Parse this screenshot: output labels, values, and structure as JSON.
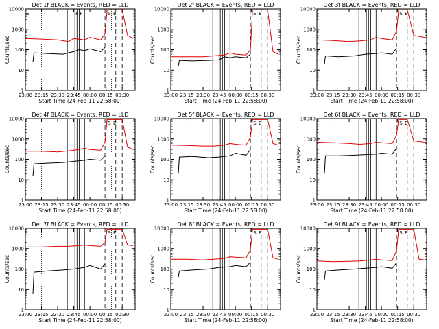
{
  "colors": {
    "events": "#000000",
    "lld": "#dd0000",
    "axis": "#000000"
  },
  "chart_data": [
    {
      "type": "line",
      "title": "Det 1f BLACK = Events, RED = LLD",
      "xlabel": "Start Time (24-Feb-11 22:58:00)",
      "ylabel": "Counts/sec",
      "yscale": "log",
      "ylim": [
        1,
        10000
      ],
      "xlim": [
        "23:00",
        "00:42"
      ],
      "xticks": [
        "23:00",
        "23:15",
        "23:30",
        "23:45",
        "00:00",
        "00:15",
        "00:30"
      ],
      "yticks": [
        "1",
        "10",
        "100",
        "1000",
        "10000"
      ],
      "time_markers": {
        "dotted": [
          "23:15",
          "00:20"
        ],
        "solid": [
          "23:39",
          "23:46",
          "23:48",
          "23:50",
          "23:55"
        ],
        "dashed": [
          "00:14",
          "00:24",
          "00:30"
        ]
      },
      "flags": [
        {
          "t": "23:00",
          "label": "E"
        },
        {
          "t": "23:46",
          "label": "F"
        },
        {
          "t": "23:50",
          "label": "F"
        },
        {
          "t": "00:16",
          "label": "S"
        },
        {
          "t": "00:21",
          "label": "E"
        }
      ],
      "series": [
        {
          "name": "BLACK = Events",
          "color": "black",
          "x": [
            "23:07",
            "23:08",
            "23:20",
            "23:35",
            "23:40",
            "23:45",
            "23:50",
            "23:55",
            "00:00",
            "00:10",
            "00:14"
          ],
          "values": [
            25,
            70,
            65,
            60,
            70,
            80,
            100,
            90,
            110,
            80,
            130
          ]
        },
        {
          "name": "RED = LLD",
          "color": "red",
          "x": [
            "23:00",
            "23:15",
            "23:30",
            "23:40",
            "23:45",
            "23:55",
            "00:00",
            "00:10",
            "00:14",
            "00:16",
            "00:30",
            "00:35",
            "00:40"
          ],
          "values": [
            350,
            330,
            300,
            250,
            350,
            300,
            400,
            300,
            600,
            9000,
            9000,
            500,
            350
          ]
        }
      ]
    },
    {
      "type": "line",
      "title": "Det 2f BLACK = Events, RED = LLD",
      "xlabel": "Start Time (24-Feb-11 22:58:00)",
      "ylabel": "Counts/sec",
      "yscale": "log",
      "ylim": [
        1,
        10000
      ],
      "xlim": [
        "23:00",
        "00:42"
      ],
      "xticks": [
        "23:00",
        "23:15",
        "23:30",
        "23:45",
        "00:00",
        "00:15",
        "00:30"
      ],
      "yticks": [
        "1",
        "10",
        "100",
        "1000",
        "10000"
      ],
      "time_markers": {
        "dotted": [
          "23:15",
          "00:20"
        ],
        "solid": [
          "23:39",
          "23:46",
          "23:48",
          "23:50",
          "23:55"
        ],
        "dashed": [
          "00:14",
          "00:24",
          "00:30"
        ]
      },
      "flags": [
        {
          "t": "00:16",
          "label": "S"
        },
        {
          "t": "00:21",
          "label": "E"
        }
      ],
      "series": [
        {
          "name": "BLACK = Events",
          "color": "black",
          "x": [
            "23:07",
            "23:08",
            "23:20",
            "23:35",
            "23:45",
            "23:50",
            "23:55",
            "00:00",
            "00:10",
            "00:14"
          ],
          "values": [
            15,
            30,
            28,
            30,
            32,
            45,
            40,
            45,
            40,
            60
          ]
        },
        {
          "name": "RED = LLD",
          "color": "red",
          "x": [
            "23:00",
            "23:15",
            "23:30",
            "23:40",
            "23:50",
            "23:55",
            "00:00",
            "00:10",
            "00:14",
            "00:16",
            "00:30",
            "00:35",
            "00:40"
          ],
          "values": [
            45,
            45,
            45,
            50,
            55,
            70,
            60,
            55,
            100,
            9000,
            9000,
            80,
            60
          ]
        }
      ]
    },
    {
      "type": "line",
      "title": "Det 3f BLACK = Events, RED = LLD",
      "xlabel": "Start Time (24-Feb-11 22:58:00)",
      "ylabel": "Counts/sec",
      "yscale": "log",
      "ylim": [
        1,
        10000
      ],
      "xlim": [
        "23:00",
        "00:42"
      ],
      "xticks": [
        "23:00",
        "23:15",
        "23:30",
        "23:45",
        "00:00",
        "00:15",
        "00:30"
      ],
      "yticks": [
        "1",
        "10",
        "100",
        "1000",
        "10000"
      ],
      "time_markers": {
        "dotted": [
          "23:15",
          "00:20"
        ],
        "solid": [
          "23:39",
          "23:46",
          "23:48",
          "23:50",
          "23:55"
        ],
        "dashed": [
          "00:14",
          "00:24",
          "00:30"
        ]
      },
      "flags": [
        {
          "t": "00:16",
          "label": "S"
        },
        {
          "t": "00:21",
          "label": "E"
        }
      ],
      "series": [
        {
          "name": "BLACK = Events",
          "color": "black",
          "x": [
            "23:07",
            "23:08",
            "23:20",
            "23:35",
            "23:45",
            "23:55",
            "00:00",
            "00:10",
            "00:14"
          ],
          "values": [
            20,
            50,
            45,
            50,
            60,
            65,
            70,
            60,
            120
          ]
        },
        {
          "name": "RED = LLD",
          "color": "red",
          "x": [
            "23:00",
            "23:15",
            "23:30",
            "23:40",
            "23:50",
            "23:55",
            "00:00",
            "00:10",
            "00:14",
            "00:16",
            "00:24",
            "00:30",
            "00:40"
          ],
          "values": [
            300,
            280,
            250,
            270,
            300,
            400,
            350,
            300,
            800,
            9000,
            9000,
            500,
            400
          ]
        }
      ]
    },
    {
      "type": "line",
      "title": "Det 4f BLACK = Events, RED = LLD",
      "xlabel": "Start Time (24-Feb-11 22:58:00)",
      "ylabel": "Counts/sec",
      "yscale": "log",
      "ylim": [
        1,
        10000
      ],
      "xlim": [
        "23:00",
        "00:42"
      ],
      "xticks": [
        "23:00",
        "23:15",
        "23:30",
        "23:45",
        "00:00",
        "00:15",
        "00:30"
      ],
      "yticks": [
        "1",
        "10",
        "100",
        "1000",
        "10000"
      ],
      "time_markers": {
        "dotted": [
          "23:15",
          "00:20"
        ],
        "solid": [
          "23:39",
          "23:46",
          "23:48",
          "23:50",
          "23:55"
        ],
        "dashed": [
          "00:14",
          "00:24",
          "00:30"
        ]
      },
      "flags": [
        {
          "t": "00:16",
          "label": "S"
        },
        {
          "t": "00:21",
          "label": "E"
        }
      ],
      "series": [
        {
          "name": "BLACK = Events",
          "color": "black",
          "x": [
            "23:07",
            "23:08",
            "23:20",
            "23:35",
            "23:45",
            "23:55",
            "00:00",
            "00:10",
            "00:14"
          ],
          "values": [
            15,
            60,
            65,
            70,
            80,
            90,
            100,
            90,
            150
          ]
        },
        {
          "name": "RED = LLD",
          "color": "red",
          "x": [
            "23:00",
            "23:15",
            "23:30",
            "23:40",
            "23:50",
            "23:55",
            "00:00",
            "00:10",
            "00:14",
            "00:16",
            "00:30",
            "00:35",
            "00:40"
          ],
          "values": [
            250,
            250,
            230,
            260,
            300,
            350,
            300,
            280,
            700,
            9000,
            9000,
            400,
            300
          ]
        }
      ]
    },
    {
      "type": "line",
      "title": "Det 5f BLACK = Events, RED = LLD",
      "xlabel": "Start Time (24-Feb-11 22:58:00)",
      "ylabel": "Counts/sec",
      "yscale": "log",
      "ylim": [
        1,
        10000
      ],
      "xlim": [
        "23:00",
        "00:42"
      ],
      "xticks": [
        "23:00",
        "23:15",
        "23:30",
        "23:45",
        "00:00",
        "00:15",
        "00:30"
      ],
      "yticks": [
        "1",
        "10",
        "100",
        "1000",
        "10000"
      ],
      "time_markers": {
        "dotted": [
          "23:15",
          "00:20"
        ],
        "solid": [
          "23:39",
          "23:46",
          "23:48",
          "23:50",
          "23:55"
        ],
        "dashed": [
          "00:14",
          "00:24",
          "00:30"
        ]
      },
      "flags": [
        {
          "t": "00:16",
          "label": "S"
        },
        {
          "t": "00:21",
          "label": "E"
        }
      ],
      "series": [
        {
          "name": "BLACK = Events",
          "color": "black",
          "x": [
            "23:07",
            "23:08",
            "23:20",
            "23:35",
            "23:45",
            "23:55",
            "00:00",
            "00:10",
            "00:14"
          ],
          "values": [
            20,
            130,
            140,
            120,
            130,
            150,
            200,
            160,
            300
          ]
        },
        {
          "name": "RED = LLD",
          "color": "red",
          "x": [
            "23:00",
            "23:15",
            "23:30",
            "23:40",
            "23:50",
            "23:55",
            "00:00",
            "00:10",
            "00:14",
            "00:16",
            "00:30",
            "00:35",
            "00:40"
          ],
          "values": [
            500,
            480,
            450,
            450,
            500,
            600,
            550,
            500,
            1200,
            9000,
            9000,
            600,
            500
          ]
        }
      ]
    },
    {
      "type": "line",
      "title": "Det 6f BLACK = Events, RED = LLD",
      "xlabel": "Start Time (24-Feb-11 22:58:00)",
      "ylabel": "Counts/sec",
      "yscale": "log",
      "ylim": [
        1,
        10000
      ],
      "xlim": [
        "23:00",
        "00:42"
      ],
      "xticks": [
        "23:00",
        "23:15",
        "23:30",
        "23:45",
        "00:00",
        "00:15",
        "00:30"
      ],
      "yticks": [
        "1",
        "10",
        "100",
        "1000",
        "10000"
      ],
      "time_markers": {
        "dotted": [
          "23:15",
          "00:20"
        ],
        "solid": [
          "23:39",
          "23:46",
          "23:48",
          "23:50",
          "23:55"
        ],
        "dashed": [
          "00:14",
          "00:24",
          "00:30"
        ]
      },
      "flags": [
        {
          "t": "00:16",
          "label": "S"
        },
        {
          "t": "00:21",
          "label": "E"
        }
      ],
      "series": [
        {
          "name": "BLACK = Events",
          "color": "black",
          "x": [
            "23:07",
            "23:08",
            "23:20",
            "23:35",
            "23:45",
            "23:55",
            "00:00",
            "00:10",
            "00:14"
          ],
          "values": [
            20,
            150,
            150,
            160,
            170,
            180,
            200,
            180,
            350
          ]
        },
        {
          "name": "RED = LLD",
          "color": "red",
          "x": [
            "23:00",
            "23:15",
            "23:30",
            "23:40",
            "23:50",
            "23:55",
            "00:00",
            "00:10",
            "00:14",
            "00:16",
            "00:24",
            "00:30",
            "00:40"
          ],
          "values": [
            700,
            650,
            600,
            550,
            600,
            700,
            650,
            600,
            1500,
            9000,
            9000,
            800,
            700
          ]
        }
      ]
    },
    {
      "type": "line",
      "title": "Det 7f BLACK = Events, RED = LLD",
      "xlabel": "Start Time (24-Feb-11 22:58:00)",
      "ylabel": "Counts/sec",
      "yscale": "log",
      "ylim": [
        1,
        10000
      ],
      "xlim": [
        "23:00",
        "00:42"
      ],
      "xticks": [
        "23:00",
        "23:15",
        "23:30",
        "23:45",
        "00:00",
        "00:15",
        "00:30"
      ],
      "yticks": [
        "1",
        "10",
        "100",
        "1000",
        "10000"
      ],
      "time_markers": {
        "dotted": [
          "23:15",
          "00:20"
        ],
        "solid": [
          "23:39",
          "23:46",
          "23:48",
          "23:50",
          "23:55"
        ],
        "dashed": [
          "00:14",
          "00:24",
          "00:30"
        ]
      },
      "flags": [
        {
          "t": "00:16",
          "label": "S"
        },
        {
          "t": "00:21",
          "label": "E"
        }
      ],
      "series": [
        {
          "name": "BLACK = Events",
          "color": "black",
          "x": [
            "23:07",
            "23:08",
            "23:20",
            "23:35",
            "23:45",
            "23:55",
            "00:00",
            "00:10",
            "00:14"
          ],
          "values": [
            6,
            70,
            80,
            90,
            100,
            120,
            150,
            100,
            180
          ]
        },
        {
          "name": "RED = LLD",
          "color": "red",
          "x": [
            "23:00",
            "23:15",
            "23:30",
            "23:40",
            "23:50",
            "23:55",
            "00:00",
            "00:10",
            "00:14",
            "00:16",
            "00:30",
            "00:35",
            "00:40"
          ],
          "values": [
            1200,
            1200,
            1300,
            1300,
            1400,
            1500,
            1400,
            1300,
            2000,
            9000,
            9000,
            1500,
            1400
          ]
        }
      ]
    },
    {
      "type": "line",
      "title": "Det 8f BLACK = Events, RED = LLD",
      "xlabel": "Start Time (24-Feb-11 22:58:00)",
      "ylabel": "Counts/sec",
      "yscale": "log",
      "ylim": [
        1,
        10000
      ],
      "xlim": [
        "23:00",
        "00:42"
      ],
      "xticks": [
        "23:00",
        "23:15",
        "23:30",
        "23:45",
        "00:00",
        "00:15",
        "00:30"
      ],
      "yticks": [
        "1",
        "10",
        "100",
        "1000",
        "10000"
      ],
      "time_markers": {
        "dotted": [
          "23:15",
          "00:20"
        ],
        "solid": [
          "23:39",
          "23:46",
          "23:48",
          "23:50",
          "23:55"
        ],
        "dashed": [
          "00:14",
          "00:24",
          "00:30"
        ]
      },
      "flags": [
        {
          "t": "00:16",
          "label": "S"
        },
        {
          "t": "00:21",
          "label": "E"
        }
      ],
      "series": [
        {
          "name": "BLACK = Events",
          "color": "black",
          "x": [
            "23:07",
            "23:08",
            "23:20",
            "23:35",
            "23:45",
            "23:55",
            "00:00",
            "00:10",
            "00:14"
          ],
          "values": [
            40,
            80,
            90,
            100,
            120,
            130,
            150,
            130,
            220
          ]
        },
        {
          "name": "RED = LLD",
          "color": "red",
          "x": [
            "23:00",
            "23:15",
            "23:30",
            "23:40",
            "23:50",
            "23:55",
            "00:00",
            "00:10",
            "00:14",
            "00:16",
            "00:30",
            "00:35",
            "00:40"
          ],
          "values": [
            300,
            300,
            280,
            300,
            330,
            400,
            380,
            350,
            900,
            9000,
            9000,
            350,
            300
          ]
        }
      ]
    },
    {
      "type": "line",
      "title": "Det 9f BLACK = Events, RED = LLD",
      "xlabel": "Start Time (24-Feb-11 22:58:00)",
      "ylabel": "Counts/sec",
      "yscale": "log",
      "ylim": [
        1,
        10000
      ],
      "xlim": [
        "23:00",
        "00:42"
      ],
      "xticks": [
        "23:00",
        "23:15",
        "23:30",
        "23:45",
        "00:00",
        "00:15",
        "00:30"
      ],
      "yticks": [
        "1",
        "10",
        "100",
        "1000",
        "10000"
      ],
      "time_markers": {
        "dotted": [
          "23:15",
          "00:20"
        ],
        "solid": [
          "23:39",
          "23:46",
          "23:48",
          "23:50",
          "23:55"
        ],
        "dashed": [
          "00:14",
          "00:24",
          "00:30"
        ]
      },
      "flags": [
        {
          "t": "00:16",
          "label": "S"
        },
        {
          "t": "00:21",
          "label": "E"
        }
      ],
      "series": [
        {
          "name": "BLACK = Events",
          "color": "black",
          "x": [
            "23:07",
            "23:08",
            "23:20",
            "23:35",
            "23:45",
            "23:55",
            "00:00",
            "00:10",
            "00:14"
          ],
          "values": [
            30,
            80,
            90,
            100,
            110,
            120,
            130,
            110,
            200
          ]
        },
        {
          "name": "RED = LLD",
          "color": "red",
          "x": [
            "23:00",
            "23:15",
            "23:30",
            "23:40",
            "23:50",
            "23:55",
            "00:00",
            "00:10",
            "00:14",
            "00:16",
            "00:30",
            "00:35",
            "00:40"
          ],
          "values": [
            250,
            230,
            240,
            250,
            280,
            300,
            280,
            260,
            800,
            9000,
            9000,
            300,
            280
          ]
        }
      ]
    }
  ]
}
